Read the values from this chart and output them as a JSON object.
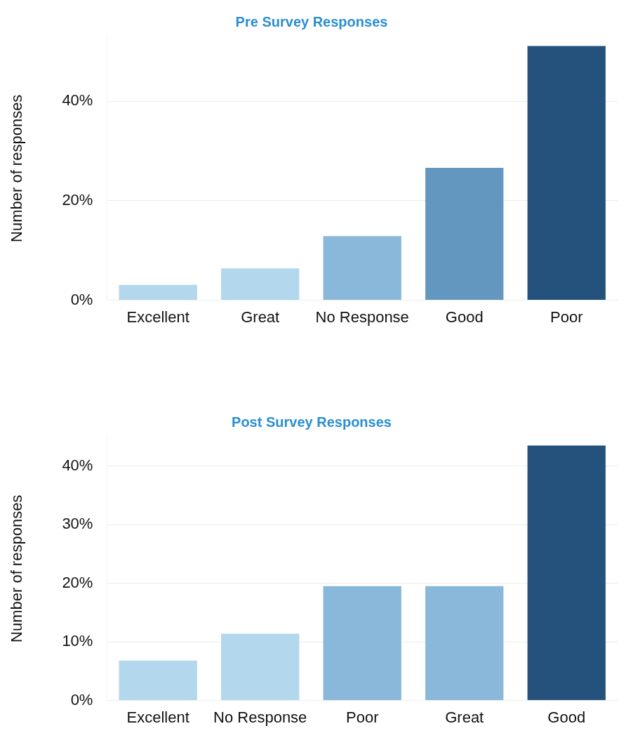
{
  "chart_data": [
    {
      "type": "bar",
      "title": "Pre Survey Responses",
      "ylabel": "Number of responses",
      "categories": [
        "Excellent",
        "Great",
        "No Response",
        "Good",
        "Poor"
      ],
      "values": [
        3.1,
        6.4,
        12.9,
        26.6,
        51.1
      ],
      "colors": [
        "#b3d7ec",
        "#b3d7ec",
        "#89b8da",
        "#6497c0",
        "#24527c"
      ],
      "ylim": [
        0,
        53
      ],
      "yticks": [
        {
          "value": 0,
          "label": "0%"
        },
        {
          "value": 20,
          "label": "20%"
        },
        {
          "value": 40,
          "label": "40%"
        }
      ],
      "grid": "y"
    },
    {
      "type": "bar",
      "title": "Post Survey Responses",
      "ylabel": "Number of responses",
      "categories": [
        "Excellent",
        "No Response",
        "Poor",
        "Great",
        "Good"
      ],
      "values": [
        6.8,
        11.4,
        19.5,
        19.5,
        43.5
      ],
      "colors": [
        "#b3d7ec",
        "#b3d7ec",
        "#89b8da",
        "#89b8da",
        "#24527c"
      ],
      "ylim": [
        0,
        45
      ],
      "yticks": [
        {
          "value": 0,
          "label": "0%"
        },
        {
          "value": 10,
          "label": "10%"
        },
        {
          "value": 20,
          "label": "20%"
        },
        {
          "value": 30,
          "label": "30%"
        },
        {
          "value": 40,
          "label": "40%"
        }
      ],
      "grid": "y"
    }
  ]
}
